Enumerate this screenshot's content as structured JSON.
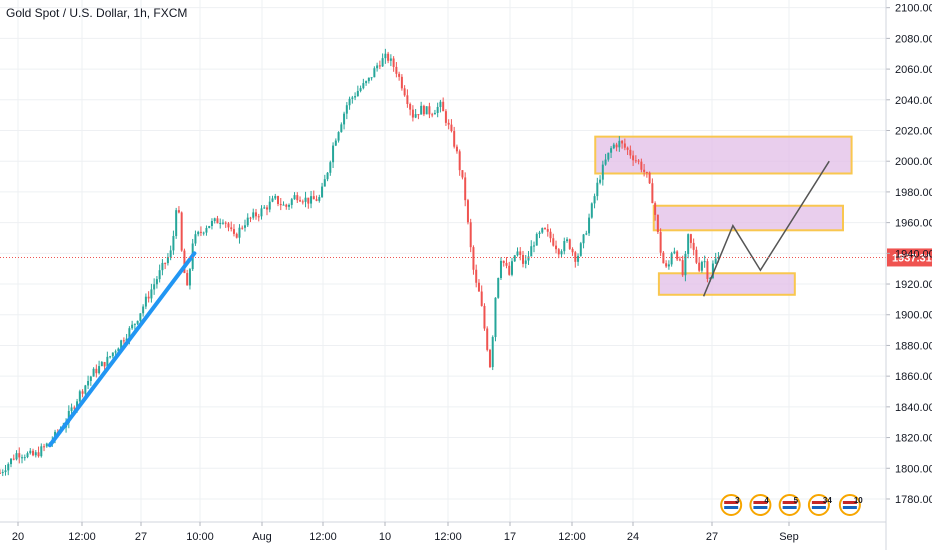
{
  "title": "Gold Spot / U.S. Dollar, 1h, FXCM",
  "colors": {
    "up": "#26a69a",
    "down": "#ef5350",
    "trendline": "#2196f3",
    "zone_fill": "#e1bee7",
    "zone_border": "#f9c74f",
    "projection": "#555555",
    "price_line": "#ef5350",
    "price_label_bg": "#ef5350",
    "grid": "#eef0f3",
    "axis_text": "#131722"
  },
  "chart_data": {
    "type": "candlestick",
    "instrument": "Gold Spot / U.S. Dollar",
    "timeframe": "1h",
    "source": "FXCM",
    "ylim": [
      1765,
      2105
    ],
    "y_ticks": [
      1780,
      1800,
      1820,
      1840,
      1860,
      1880,
      1900,
      1920,
      1940,
      1960,
      1980,
      2000,
      2020,
      2040,
      2060,
      2080,
      2100
    ],
    "y_tick_labels": [
      "1780.00",
      "1800.00",
      "1820.00",
      "1840.00",
      "1860.00",
      "1880.00",
      "1900.00",
      "1920.00",
      "1940.00",
      "1960.00",
      "1980.00",
      "2000.00",
      "2020.00",
      "2040.00",
      "2060.00",
      "2080.00",
      "2100.00"
    ],
    "x_tick_labels": [
      "20",
      "12:00",
      "27",
      "10:00",
      "Aug",
      "12:00",
      "10",
      "12:00",
      "17",
      "12:00",
      "24",
      "27",
      "Sep"
    ],
    "last_price": 1937.31,
    "last_price_label": "1937.31",
    "price_path": [
      {
        "x": 0.0,
        "y": 1797
      },
      {
        "x": 1.0,
        "y": 1810
      },
      {
        "x": 2.0,
        "y": 1808
      },
      {
        "x": 3.0,
        "y": 1818
      },
      {
        "x": 3.8,
        "y": 1830
      },
      {
        "x": 4.6,
        "y": 1848
      },
      {
        "x": 5.4,
        "y": 1862
      },
      {
        "x": 6.2,
        "y": 1870
      },
      {
        "x": 7.0,
        "y": 1882
      },
      {
        "x": 7.8,
        "y": 1894
      },
      {
        "x": 8.6,
        "y": 1912
      },
      {
        "x": 9.4,
        "y": 1930
      },
      {
        "x": 10.0,
        "y": 1942
      },
      {
        "x": 10.3,
        "y": 1978
      },
      {
        "x": 10.6,
        "y": 1935
      },
      {
        "x": 10.9,
        "y": 1915
      },
      {
        "x": 11.2,
        "y": 1948
      },
      {
        "x": 12.0,
        "y": 1958
      },
      {
        "x": 13.0,
        "y": 1963
      },
      {
        "x": 13.6,
        "y": 1950
      },
      {
        "x": 14.2,
        "y": 1960
      },
      {
        "x": 15.0,
        "y": 1966
      },
      {
        "x": 16.0,
        "y": 1975
      },
      {
        "x": 16.6,
        "y": 1970
      },
      {
        "x": 17.2,
        "y": 1978
      },
      {
        "x": 18.0,
        "y": 1974
      },
      {
        "x": 18.6,
        "y": 1976
      },
      {
        "x": 19.0,
        "y": 1992
      },
      {
        "x": 19.4,
        "y": 2012
      },
      {
        "x": 19.8,
        "y": 2025
      },
      {
        "x": 20.2,
        "y": 2038
      },
      {
        "x": 20.8,
        "y": 2046
      },
      {
        "x": 21.4,
        "y": 2052
      },
      {
        "x": 22.0,
        "y": 2064
      },
      {
        "x": 22.5,
        "y": 2068
      },
      {
        "x": 23.0,
        "y": 2060
      },
      {
        "x": 23.5,
        "y": 2046
      },
      {
        "x": 24.0,
        "y": 2030
      },
      {
        "x": 24.5,
        "y": 2034
      },
      {
        "x": 25.0,
        "y": 2032
      },
      {
        "x": 25.6,
        "y": 2036
      },
      {
        "x": 26.0,
        "y": 2025
      },
      {
        "x": 26.5,
        "y": 2008
      },
      {
        "x": 27.0,
        "y": 1980
      },
      {
        "x": 27.3,
        "y": 1948
      },
      {
        "x": 27.6,
        "y": 1922
      },
      {
        "x": 27.9,
        "y": 1912
      },
      {
        "x": 28.2,
        "y": 1888
      },
      {
        "x": 28.5,
        "y": 1866
      },
      {
        "x": 28.8,
        "y": 1912
      },
      {
        "x": 29.1,
        "y": 1938
      },
      {
        "x": 29.6,
        "y": 1926
      },
      {
        "x": 30.0,
        "y": 1942
      },
      {
        "x": 30.5,
        "y": 1932
      },
      {
        "x": 31.0,
        "y": 1947
      },
      {
        "x": 31.6,
        "y": 1955
      },
      {
        "x": 32.0,
        "y": 1950
      },
      {
        "x": 32.5,
        "y": 1942
      },
      {
        "x": 33.0,
        "y": 1948
      },
      {
        "x": 33.5,
        "y": 1936
      },
      {
        "x": 34.0,
        "y": 1952
      },
      {
        "x": 34.4,
        "y": 1970
      },
      {
        "x": 34.8,
        "y": 1988
      },
      {
        "x": 35.2,
        "y": 2000
      },
      {
        "x": 35.6,
        "y": 2010
      },
      {
        "x": 36.0,
        "y": 2012
      },
      {
        "x": 36.4,
        "y": 2008
      },
      {
        "x": 36.8,
        "y": 2003
      },
      {
        "x": 37.2,
        "y": 1998
      },
      {
        "x": 37.6,
        "y": 1990
      },
      {
        "x": 38.0,
        "y": 1972
      },
      {
        "x": 38.2,
        "y": 1955
      },
      {
        "x": 38.5,
        "y": 1935
      },
      {
        "x": 38.8,
        "y": 1928
      },
      {
        "x": 39.1,
        "y": 1945
      },
      {
        "x": 39.4,
        "y": 1938
      },
      {
        "x": 39.7,
        "y": 1925
      },
      {
        "x": 40.0,
        "y": 1950
      },
      {
        "x": 40.3,
        "y": 1942
      },
      {
        "x": 40.6,
        "y": 1930
      },
      {
        "x": 40.9,
        "y": 1938
      },
      {
        "x": 41.2,
        "y": 1922
      },
      {
        "x": 41.5,
        "y": 1935
      },
      {
        "x": 41.8,
        "y": 1937
      }
    ],
    "trendline": [
      {
        "x": 2.9,
        "y": 1815
      },
      {
        "x": 11.3,
        "y": 1940
      }
    ],
    "zones": [
      {
        "x0": 34.6,
        "x1": 49.5,
        "y0": 1992,
        "y1": 2016
      },
      {
        "x0": 38.0,
        "x1": 49.0,
        "y0": 1955,
        "y1": 1971
      },
      {
        "x0": 38.3,
        "x1": 46.2,
        "y0": 1913,
        "y1": 1927
      }
    ],
    "projection": [
      {
        "x": 40.9,
        "y": 1912
      },
      {
        "x": 42.6,
        "y": 1958
      },
      {
        "x": 44.2,
        "y": 1929
      },
      {
        "x": 48.2,
        "y": 2000
      }
    ],
    "event_badges": [
      "3",
      "4",
      "5",
      "34",
      "10"
    ],
    "event_badge_x": [
      42.5,
      44.2,
      45.9,
      47.6,
      49.4
    ]
  }
}
